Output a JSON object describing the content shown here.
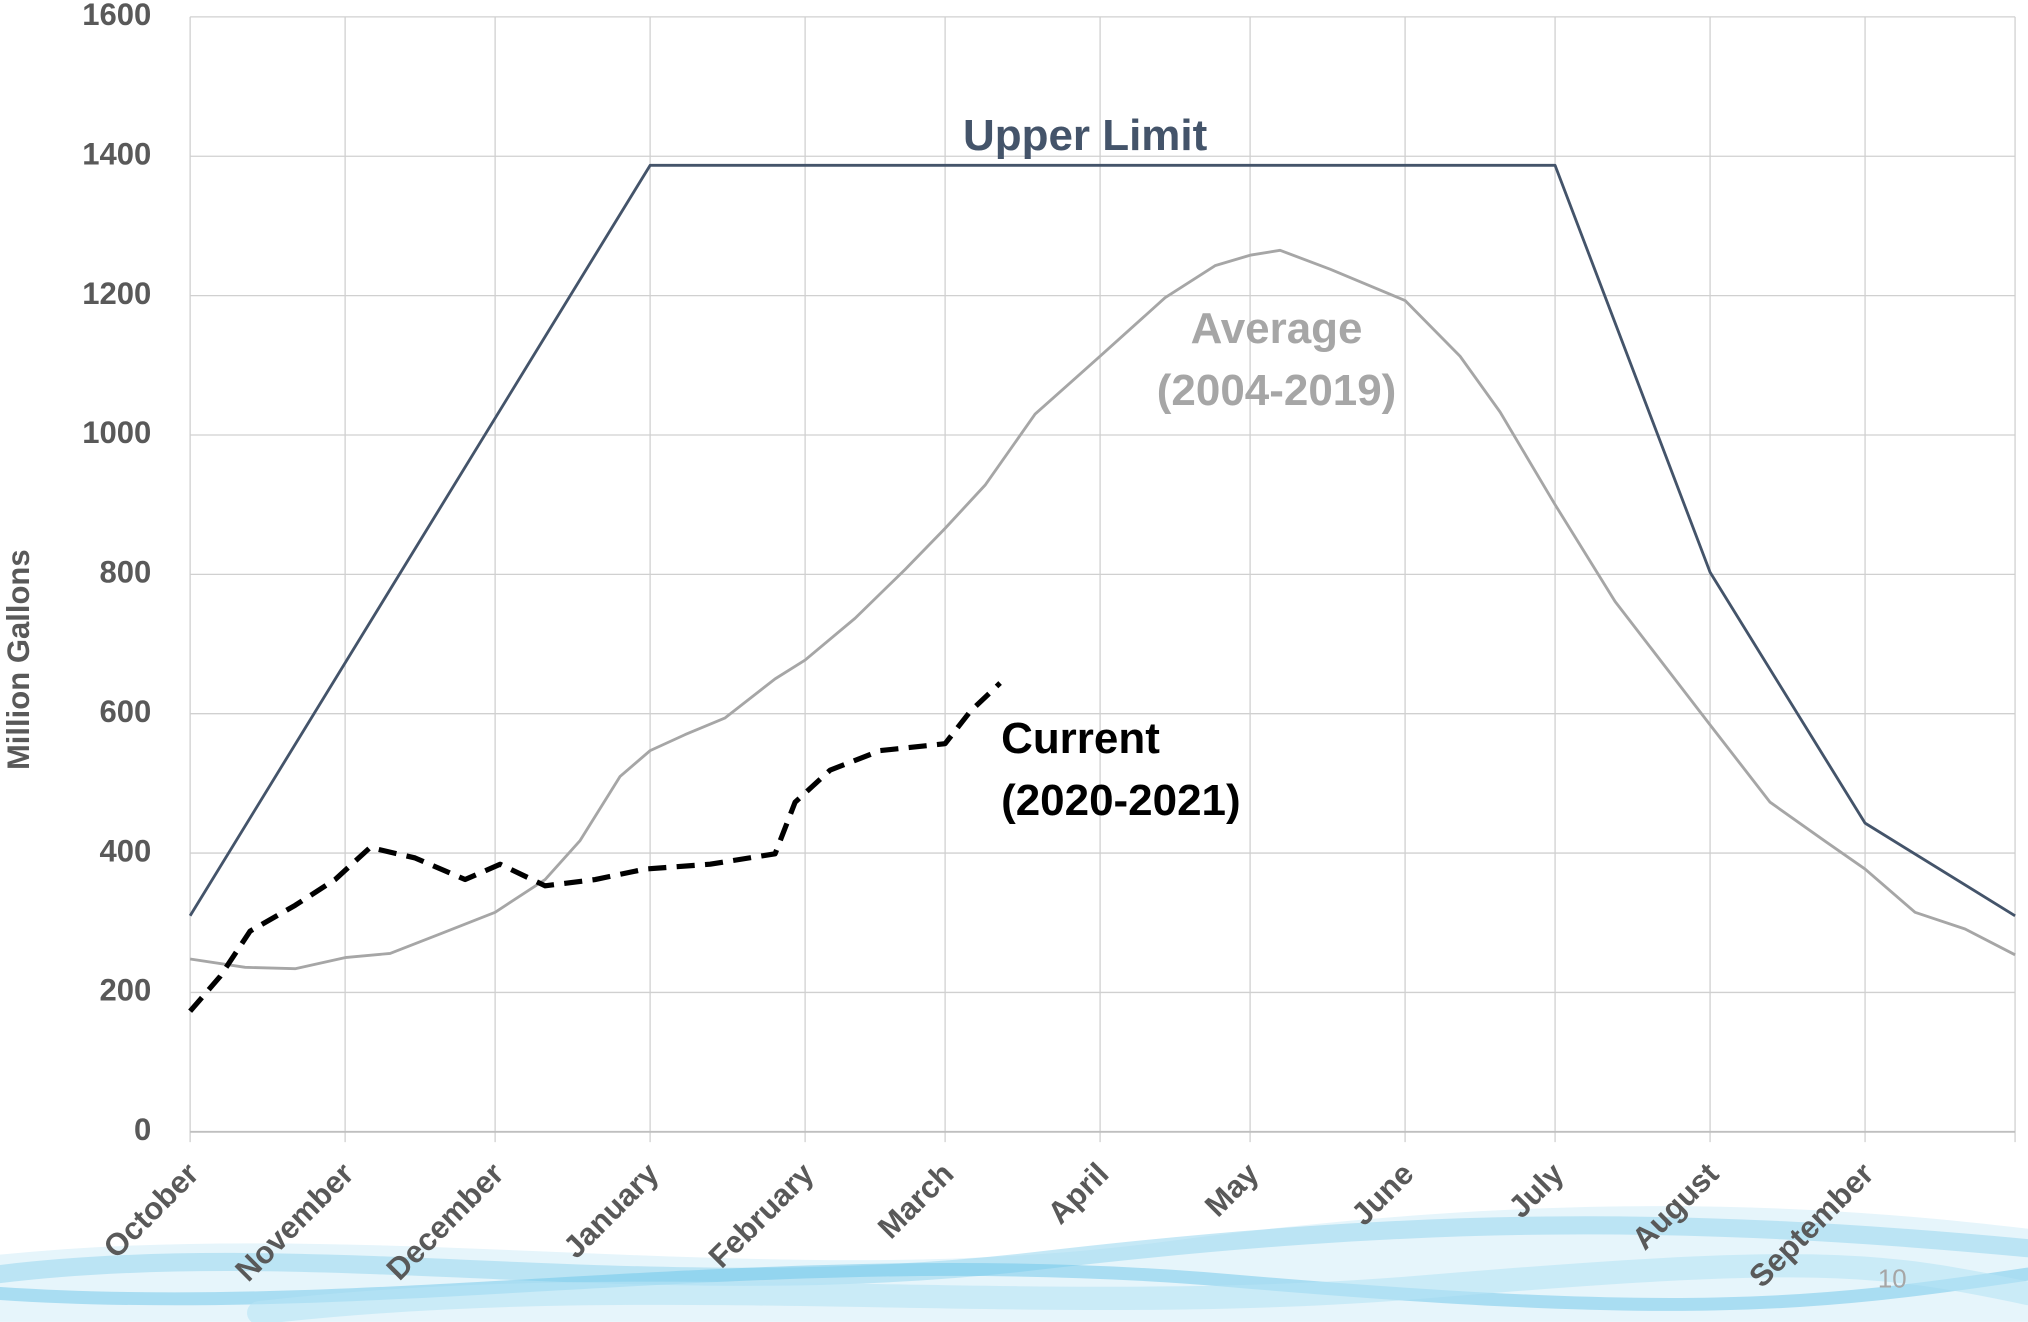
{
  "chart_data": {
    "type": "line",
    "y_label": "Million Gallons",
    "xlim": [
      0,
      365
    ],
    "ylim": [
      0,
      1600
    ],
    "xticks": [
      {
        "value": 0,
        "label": "October"
      },
      {
        "value": 31,
        "label": "November"
      },
      {
        "value": 61,
        "label": "December"
      },
      {
        "value": 92,
        "label": "January"
      },
      {
        "value": 123,
        "label": "February"
      },
      {
        "value": 151,
        "label": "March"
      },
      {
        "value": 182,
        "label": "April"
      },
      {
        "value": 212,
        "label": "May"
      },
      {
        "value": 243,
        "label": "June"
      },
      {
        "value": 273,
        "label": "July"
      },
      {
        "value": 304,
        "label": "August"
      },
      {
        "value": 335,
        "label": "September"
      }
    ],
    "yticks": [
      0,
      200,
      400,
      600,
      800,
      1000,
      1200,
      1400,
      1600
    ],
    "grid": true,
    "series": [
      {
        "label": [
          "Upper Limit"
        ],
        "color": "#44546a",
        "dash": false,
        "x": [
          0,
          92,
          273,
          304,
          335,
          365
        ],
        "values": [
          310,
          1387,
          1387,
          803,
          443,
          310
        ]
      },
      {
        "label": [
          "Average",
          "(2004-2019)"
        ],
        "color": "#a6a6a6",
        "dash": false,
        "x": [
          0,
          11,
          21,
          31,
          40,
          50,
          61,
          71,
          78,
          86,
          92,
          99,
          107,
          117,
          123,
          133,
          143,
          151,
          159,
          169,
          182,
          195,
          205,
          212,
          218,
          228,
          243,
          254,
          262,
          273,
          285,
          298,
          304,
          316,
          327,
          335,
          345,
          355,
          365
        ],
        "values": [
          248,
          236,
          234,
          250,
          256,
          284,
          315,
          362,
          418,
          510,
          547,
          570,
          594,
          650,
          677,
          737,
          807,
          866,
          928,
          1030,
          1113,
          1197,
          1243,
          1258,
          1265,
          1238,
          1193,
          1113,
          1033,
          900,
          761,
          640,
          584,
          473,
          417,
          377,
          315,
          291,
          254
        ]
      },
      {
        "label": [
          "Current",
          "(2020-2021)"
        ],
        "color": "#000000",
        "dash": true,
        "x": [
          0,
          6,
          12,
          21,
          29,
          36,
          45,
          55,
          62,
          71,
          81,
          91,
          104,
          117,
          121,
          128,
          138,
          151,
          156,
          162
        ],
        "values": [
          173,
          223,
          288,
          325,
          362,
          408,
          393,
          362,
          384,
          353,
          362,
          377,
          384,
          399,
          473,
          519,
          547,
          557,
          603,
          644
        ]
      }
    ]
  },
  "page_number": "10"
}
